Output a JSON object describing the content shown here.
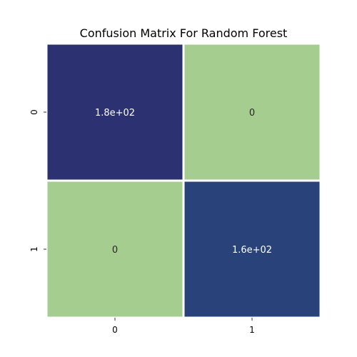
{
  "chart_data": {
    "type": "heatmap",
    "title": "Confusion Matrix For Random Forest",
    "xlabel": "",
    "ylabel": "",
    "x_tick_labels": [
      "0",
      "1"
    ],
    "y_tick_labels": [
      "0",
      "1"
    ],
    "values": [
      [
        180,
        0
      ],
      [
        0,
        160
      ]
    ],
    "annotations": [
      [
        "1.8e+02",
        "0"
      ],
      [
        "0",
        "1.6e+02"
      ]
    ],
    "colormap": "crest",
    "vmin": 0,
    "vmax": 180,
    "colorbar": false,
    "grid": false,
    "colors": {
      "low": "#a5cd90",
      "high": "#2c3172",
      "cell_border": "#ffffff",
      "annotation_on_dark": "#ffffff",
      "annotation_on_light": "#262626"
    }
  }
}
